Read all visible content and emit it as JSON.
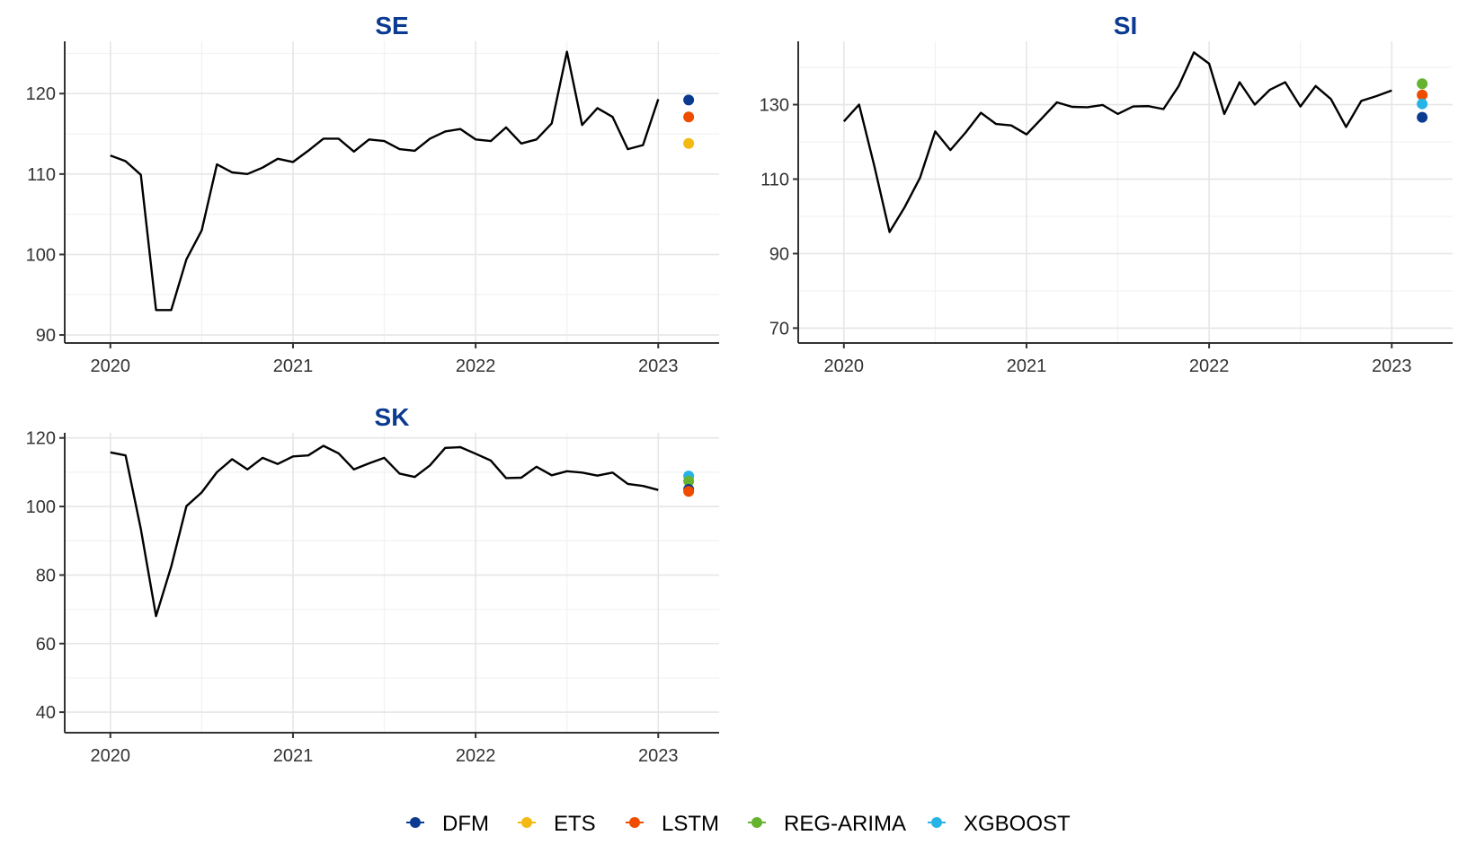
{
  "chart_data": [
    {
      "type": "line",
      "title": "SE",
      "x_ticks": [
        "2020",
        "2021",
        "2022",
        "2023"
      ],
      "y_ticks": [
        90,
        100,
        110,
        120
      ],
      "xlim": [
        "2019-10",
        "2023-05"
      ],
      "ylim": [
        89,
        126.5
      ],
      "grid": true,
      "series": [
        {
          "color": "#000000",
          "x": [
            "2020-01",
            "2020-02",
            "2020-03",
            "2020-04",
            "2020-05",
            "2020-06",
            "2020-07",
            "2020-08",
            "2020-09",
            "2020-10",
            "2020-11",
            "2020-12",
            "2021-01",
            "2021-02",
            "2021-03",
            "2021-04",
            "2021-05",
            "2021-06",
            "2021-07",
            "2021-08",
            "2021-09",
            "2021-10",
            "2021-11",
            "2021-12",
            "2022-01",
            "2022-02",
            "2022-03",
            "2022-04",
            "2022-05",
            "2022-06",
            "2022-07",
            "2022-08",
            "2022-09",
            "2022-10",
            "2022-11",
            "2022-12",
            "2023-01"
          ],
          "values": [
            112.3,
            111.6,
            109.9,
            93.1,
            93.1,
            99.4,
            103.0,
            111.2,
            110.2,
            110.0,
            110.8,
            111.9,
            111.5,
            112.9,
            114.4,
            114.4,
            112.8,
            114.3,
            114.1,
            113.1,
            112.9,
            114.4,
            115.3,
            115.6,
            114.3,
            114.1,
            115.8,
            113.8,
            114.3,
            116.3,
            125.2,
            116.1,
            118.2,
            117.1,
            113.1,
            113.6,
            119.3
          ]
        }
      ],
      "forecasts": [
        {
          "model": "DFM",
          "x": "2023-03",
          "value": 119.2
        },
        {
          "model": "LSTM",
          "x": "2023-03",
          "value": 117.1
        },
        {
          "model": "ETS",
          "x": "2023-03",
          "value": 113.8
        }
      ]
    },
    {
      "type": "line",
      "title": "SI",
      "x_ticks": [
        "2020",
        "2021",
        "2022",
        "2023"
      ],
      "y_ticks": [
        70,
        90,
        110,
        130
      ],
      "xlim": [
        "2019-10",
        "2023-05"
      ],
      "ylim": [
        66,
        147
      ],
      "grid": true,
      "series": [
        {
          "color": "#000000",
          "x": [
            "2020-01",
            "2020-02",
            "2020-03",
            "2020-04",
            "2020-05",
            "2020-06",
            "2020-07",
            "2020-08",
            "2020-09",
            "2020-10",
            "2020-11",
            "2020-12",
            "2021-01",
            "2021-02",
            "2021-03",
            "2021-04",
            "2021-05",
            "2021-06",
            "2021-07",
            "2021-08",
            "2021-09",
            "2021-10",
            "2021-11",
            "2021-12",
            "2022-01",
            "2022-02",
            "2022-03",
            "2022-04",
            "2022-05",
            "2022-06",
            "2022-07",
            "2022-08",
            "2022-09",
            "2022-10",
            "2022-11",
            "2022-12",
            "2023-01"
          ],
          "values": [
            125.5,
            130.0,
            113.5,
            95.8,
            102.5,
            110.3,
            122.8,
            117.8,
            122.5,
            127.8,
            124.8,
            124.4,
            122.0,
            126.3,
            130.6,
            129.4,
            129.3,
            129.9,
            127.5,
            129.5,
            129.6,
            128.8,
            135.0,
            144.0,
            141.0,
            127.5,
            136.0,
            130.0,
            134.0,
            136.0,
            129.5,
            135.0,
            131.5,
            124.0,
            131.0,
            132.3,
            133.8
          ]
        }
      ],
      "forecasts": [
        {
          "model": "REG-ARIMA",
          "x": "2023-03",
          "value": 135.6
        },
        {
          "model": "LSTM",
          "x": "2023-03",
          "value": 132.6
        },
        {
          "model": "XGBOOST",
          "x": "2023-03",
          "value": 130.2
        },
        {
          "model": "DFM",
          "x": "2023-03",
          "value": 126.6
        }
      ]
    },
    {
      "type": "line",
      "title": "SK",
      "x_ticks": [
        "2020",
        "2021",
        "2022",
        "2023"
      ],
      "y_ticks": [
        40,
        60,
        80,
        100,
        120
      ],
      "xlim": [
        "2019-10",
        "2023-05"
      ],
      "ylim": [
        34,
        121.5
      ],
      "grid": true,
      "series": [
        {
          "color": "#000000",
          "x": [
            "2020-01",
            "2020-02",
            "2020-03",
            "2020-04",
            "2020-05",
            "2020-06",
            "2020-07",
            "2020-08",
            "2020-09",
            "2020-10",
            "2020-11",
            "2020-12",
            "2021-01",
            "2021-02",
            "2021-03",
            "2021-04",
            "2021-05",
            "2021-06",
            "2021-07",
            "2021-08",
            "2021-09",
            "2021-10",
            "2021-11",
            "2021-12",
            "2022-01",
            "2022-02",
            "2022-03",
            "2022-04",
            "2022-05",
            "2022-06",
            "2022-07",
            "2022-08",
            "2022-09",
            "2022-10",
            "2022-11",
            "2022-12",
            "2023-01"
          ],
          "values": [
            115.8,
            114.9,
            93.4,
            68.0,
            82.5,
            100.1,
            104.1,
            110.0,
            113.8,
            110.8,
            114.2,
            112.4,
            114.6,
            114.9,
            117.7,
            115.5,
            110.8,
            112.6,
            114.2,
            109.6,
            108.6,
            112.0,
            117.1,
            117.3,
            115.4,
            113.4,
            108.3,
            108.4,
            111.6,
            109.1,
            110.3,
            109.9,
            109.0,
            109.9,
            106.6,
            106.0,
            104.8
          ]
        }
      ],
      "forecasts": [
        {
          "model": "XGBOOST",
          "x": "2023-03",
          "value": 108.9
        },
        {
          "model": "REG-ARIMA",
          "x": "2023-03",
          "value": 107.4
        },
        {
          "model": "DFM",
          "x": "2023-03",
          "value": 105.0
        },
        {
          "model": "LSTM",
          "x": "2023-03",
          "value": 104.4
        }
      ]
    }
  ],
  "legend": {
    "placement": "bottom",
    "items": [
      {
        "label": "DFM",
        "color": "#0b3a91"
      },
      {
        "label": "ETS",
        "color": "#f5b914"
      },
      {
        "label": "LSTM",
        "color": "#f04c00"
      },
      {
        "label": "REG-ARIMA",
        "color": "#65b32e"
      },
      {
        "label": "XGBOOST",
        "color": "#26b3e6"
      }
    ]
  }
}
